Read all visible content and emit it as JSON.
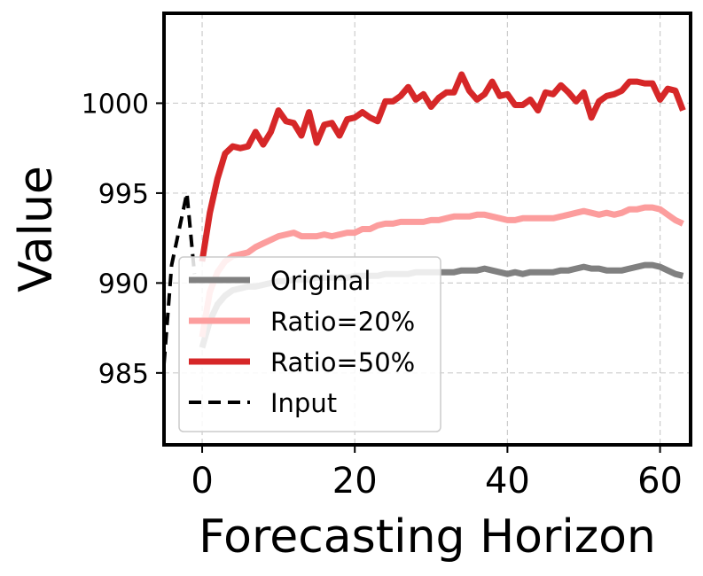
{
  "chart_data": {
    "type": "line",
    "title": "",
    "xlabel": "Forecasting Horizon",
    "ylabel": "Value",
    "xlim": [
      -5,
      64
    ],
    "ylim": [
      981,
      1005
    ],
    "xticks": [
      0,
      20,
      40,
      60
    ],
    "yticks": [
      985,
      990,
      995,
      1000
    ],
    "grid": true,
    "legend_position": "lower-left",
    "series": [
      {
        "name": "Original",
        "color": "#808080",
        "style": "solid",
        "x": [
          0,
          1,
          2,
          3,
          4,
          5,
          6,
          7,
          8,
          9,
          10,
          11,
          12,
          13,
          14,
          15,
          16,
          17,
          18,
          19,
          20,
          21,
          22,
          23,
          24,
          25,
          26,
          27,
          28,
          29,
          30,
          31,
          32,
          33,
          34,
          35,
          36,
          37,
          38,
          39,
          40,
          41,
          42,
          43,
          44,
          45,
          46,
          47,
          48,
          49,
          50,
          51,
          52,
          53,
          54,
          55,
          56,
          57,
          58,
          59,
          60,
          61,
          62,
          63
        ],
        "values": [
          986.4,
          987.9,
          988.8,
          989.3,
          989.6,
          989.7,
          989.8,
          989.8,
          989.9,
          990.0,
          990.1,
          990.1,
          990.2,
          990.2,
          990.2,
          990.3,
          990.3,
          990.3,
          990.3,
          990.3,
          990.4,
          990.4,
          990.4,
          990.4,
          990.5,
          990.5,
          990.5,
          990.5,
          990.6,
          990.6,
          990.6,
          990.6,
          990.6,
          990.6,
          990.7,
          990.7,
          990.7,
          990.8,
          990.7,
          990.6,
          990.5,
          990.6,
          990.5,
          990.6,
          990.6,
          990.6,
          990.6,
          990.7,
          990.7,
          990.8,
          990.9,
          990.8,
          990.8,
          990.7,
          990.7,
          990.7,
          990.8,
          990.9,
          991.0,
          991.0,
          990.9,
          990.7,
          990.5,
          990.4
        ]
      },
      {
        "name": "Ratio=20%",
        "color": "#fc9d9d",
        "style": "solid",
        "x": [
          0,
          1,
          2,
          3,
          4,
          5,
          6,
          7,
          8,
          9,
          10,
          11,
          12,
          13,
          14,
          15,
          16,
          17,
          18,
          19,
          20,
          21,
          22,
          23,
          24,
          25,
          26,
          27,
          28,
          29,
          30,
          31,
          32,
          33,
          34,
          35,
          36,
          37,
          38,
          39,
          40,
          41,
          42,
          43,
          44,
          45,
          46,
          47,
          48,
          49,
          50,
          51,
          52,
          53,
          54,
          55,
          56,
          57,
          58,
          59,
          60,
          61,
          62,
          63
        ],
        "values": [
          987.0,
          989.5,
          990.6,
          991.2,
          991.5,
          991.6,
          991.7,
          992.0,
          992.2,
          992.4,
          992.6,
          992.7,
          992.8,
          992.6,
          992.6,
          992.6,
          992.7,
          992.6,
          992.7,
          992.8,
          992.8,
          993.0,
          993.0,
          993.2,
          993.3,
          993.3,
          993.4,
          993.4,
          993.4,
          993.4,
          993.5,
          993.5,
          993.6,
          993.7,
          993.7,
          993.7,
          993.8,
          993.8,
          993.7,
          993.6,
          993.5,
          993.5,
          993.6,
          993.6,
          993.6,
          993.6,
          993.6,
          993.7,
          993.8,
          993.9,
          994.0,
          993.9,
          993.8,
          993.9,
          993.8,
          993.9,
          994.1,
          994.1,
          994.2,
          994.2,
          994.1,
          993.8,
          993.5,
          993.3
        ]
      },
      {
        "name": "Ratio=50%",
        "color": "#d62728",
        "style": "solid",
        "x": [
          0,
          1,
          2,
          3,
          4,
          5,
          6,
          7,
          8,
          9,
          10,
          11,
          12,
          13,
          14,
          15,
          16,
          17,
          18,
          19,
          20,
          21,
          22,
          23,
          24,
          25,
          26,
          27,
          28,
          29,
          30,
          31,
          32,
          33,
          34,
          35,
          36,
          37,
          38,
          39,
          40,
          41,
          42,
          43,
          44,
          45,
          46,
          47,
          48,
          49,
          50,
          51,
          52,
          53,
          54,
          55,
          56,
          57,
          58,
          59,
          60,
          61,
          62,
          63
        ],
        "values": [
          991.2,
          993.9,
          995.8,
          997.2,
          997.6,
          997.5,
          997.6,
          998.4,
          997.7,
          998.4,
          999.6,
          999.0,
          998.9,
          998.2,
          999.5,
          997.8,
          998.8,
          998.9,
          998.2,
          999.1,
          999.2,
          999.5,
          999.2,
          999.0,
          1000.1,
          1000.1,
          1000.4,
          1000.9,
          1000.2,
          1000.5,
          999.8,
          1000.3,
          1000.6,
          1000.6,
          1001.6,
          1000.7,
          1000.2,
          1000.5,
          1001.2,
          1000.4,
          1000.5,
          999.9,
          999.9,
          1000.2,
          999.6,
          1000.6,
          1000.5,
          1001.0,
          1000.6,
          1000.1,
          1000.6,
          999.2,
          1000.1,
          1000.4,
          1000.5,
          1000.7,
          1001.2,
          1001.2,
          1001.1,
          1001.1,
          1000.2,
          1000.8,
          1000.7,
          999.6
        ]
      },
      {
        "name": "Input",
        "color": "#000000",
        "style": "dashed",
        "x": [
          -5,
          -4,
          -3,
          -2,
          -1
        ],
        "values": [
          985.5,
          991.0,
          993.0,
          995.0,
          990.5
        ]
      }
    ]
  }
}
